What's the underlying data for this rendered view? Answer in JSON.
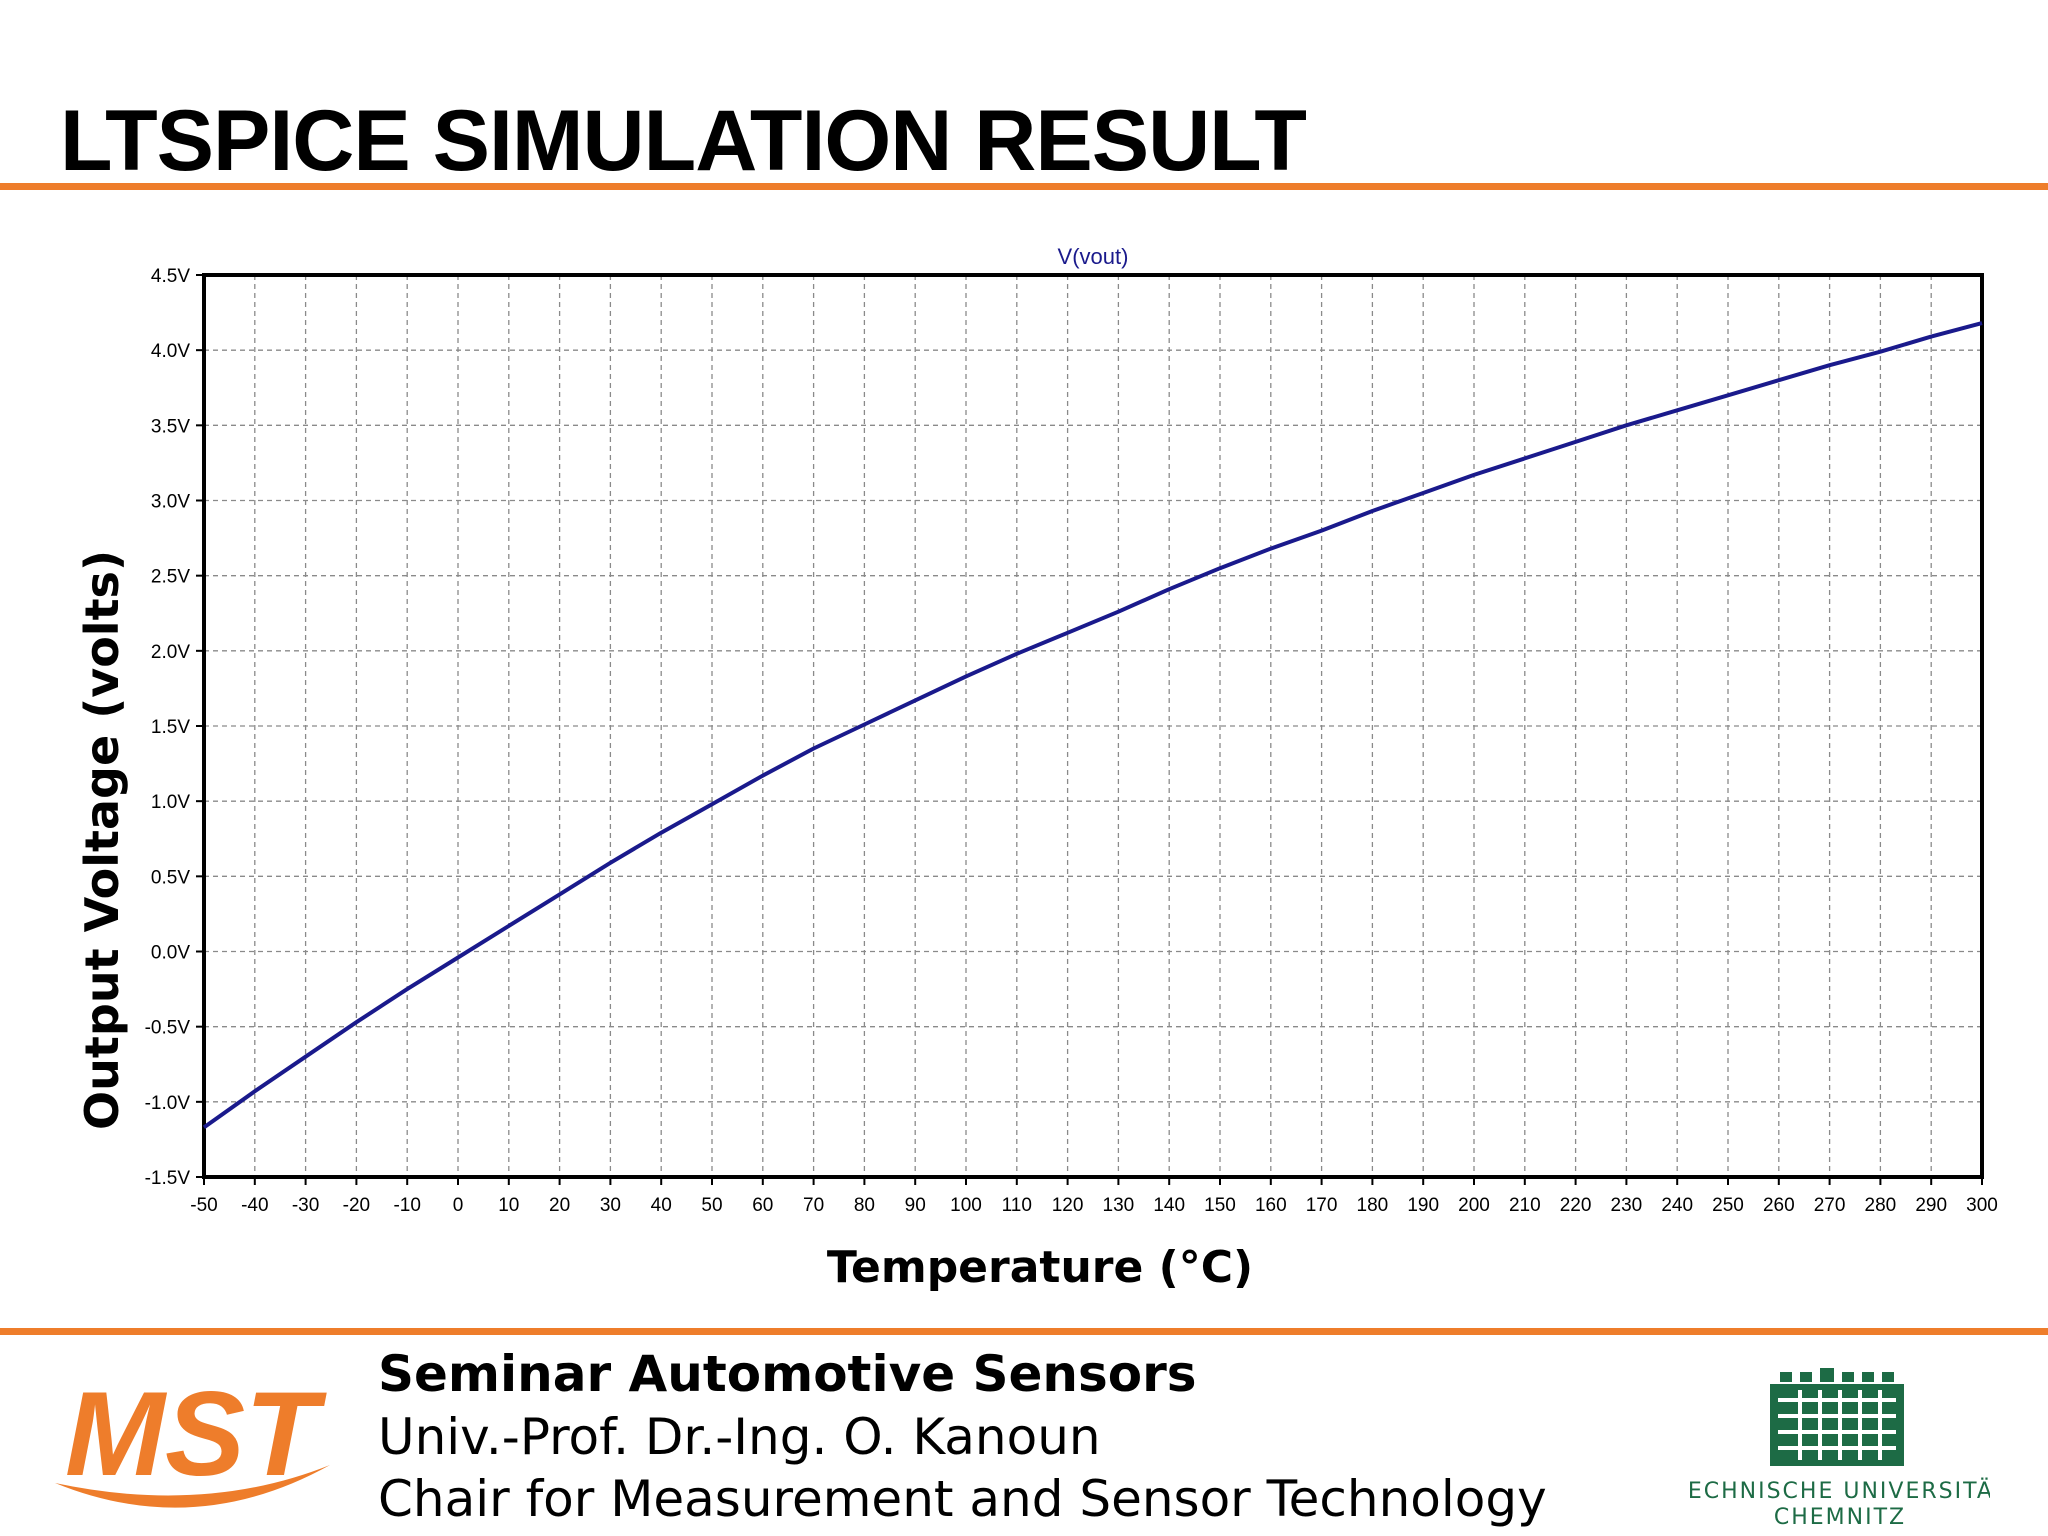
{
  "slide": {
    "title": "LTSPICE SIMULATION RESULT",
    "accent_color": "#ee7d2b"
  },
  "chart_data": {
    "type": "line",
    "title": "V(vout)",
    "xlabel": "Temperature (°C)",
    "ylabel": "Output Voltage (volts)",
    "xlim": [
      -50,
      300
    ],
    "ylim": [
      -1.5,
      4.5
    ],
    "x_ticks": [
      -50,
      -40,
      -30,
      -20,
      -10,
      0,
      10,
      20,
      30,
      40,
      50,
      60,
      70,
      80,
      90,
      100,
      110,
      120,
      130,
      140,
      150,
      160,
      170,
      180,
      190,
      200,
      210,
      220,
      230,
      240,
      250,
      260,
      270,
      280,
      290,
      300
    ],
    "y_ticks": [
      "4.5V",
      "4.0V",
      "3.5V",
      "3.0V",
      "2.5V",
      "2.0V",
      "1.5V",
      "1.0V",
      "0.5V",
      "0.0V",
      "-0.5V",
      "-1.0V",
      "-1.5V"
    ],
    "grid": true,
    "series": [
      {
        "name": "V(vout)",
        "color": "#1a1a8c",
        "x": [
          -50,
          -40,
          -30,
          -20,
          -10,
          0,
          10,
          20,
          30,
          40,
          50,
          60,
          70,
          80,
          90,
          100,
          110,
          120,
          130,
          140,
          150,
          160,
          170,
          180,
          190,
          200,
          210,
          220,
          230,
          240,
          250,
          260,
          270,
          280,
          290,
          300
        ],
        "y": [
          -1.17,
          -0.93,
          -0.7,
          -0.47,
          -0.25,
          -0.04,
          0.17,
          0.38,
          0.59,
          0.79,
          0.98,
          1.17,
          1.35,
          1.51,
          1.67,
          1.83,
          1.98,
          2.12,
          2.26,
          2.41,
          2.55,
          2.68,
          2.8,
          2.93,
          3.05,
          3.17,
          3.28,
          3.39,
          3.5,
          3.6,
          3.7,
          3.8,
          3.9,
          3.99,
          4.09,
          4.18
        ]
      }
    ]
  },
  "footer": {
    "line1": "Seminar Automotive Sensors",
    "line2": "Univ.-Prof. Dr.-Ing. O. Kanoun",
    "line3": "Chair for Measurement and Sensor Technology",
    "logo_left_text": "MST",
    "logo_right_line1": "TECHNISCHE UNIVERSITÄT",
    "logo_right_line2": "CHEMNITZ",
    "tu_green": "#1d6b45"
  }
}
